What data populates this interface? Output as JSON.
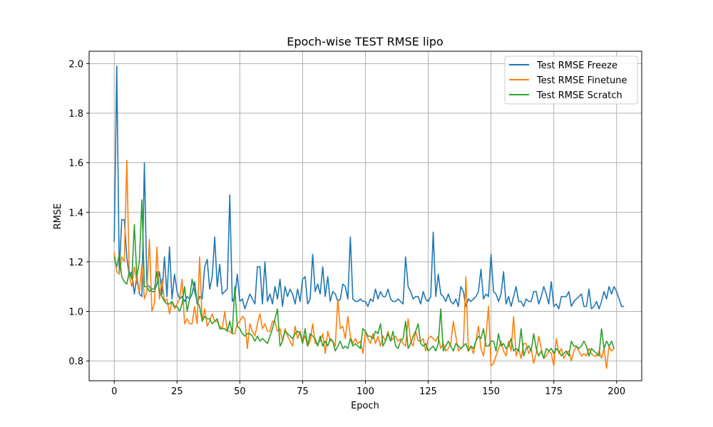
{
  "chart_data": {
    "type": "line",
    "title": "Epoch-wise TEST RMSE lipo",
    "xlabel": "Epoch",
    "ylabel": "RMSE",
    "xlim": [
      -10,
      210
    ],
    "ylim": [
      0.72,
      2.05
    ],
    "xticks": [
      0,
      25,
      50,
      75,
      100,
      125,
      150,
      175,
      200
    ],
    "yticks": [
      0.8,
      1.0,
      1.2,
      1.4,
      1.6,
      1.8,
      2.0
    ],
    "ytick_labels": [
      "0.8",
      "1.0",
      "1.2",
      "1.4",
      "1.6",
      "1.8",
      "2.0"
    ],
    "grid": true,
    "legend_position": "top-right",
    "series": [
      {
        "name": "Test RMSE Freeze",
        "color": "#1f77b4",
        "values": [
          1.28,
          1.99,
          1.16,
          1.37,
          1.37,
          1.22,
          1.14,
          1.16,
          1.07,
          1.14,
          1.07,
          1.06,
          1.6,
          1.11,
          1.1,
          1.08,
          1.08,
          1.11,
          1.16,
          1.07,
          1.22,
          1.06,
          1.26,
          1.05,
          1.15,
          1.08,
          1.05,
          1.06,
          1.04,
          1.06,
          1.05,
          1.07,
          1.12,
          1.03,
          1.06,
          1.05,
          1.18,
          1.21,
          1.09,
          1.14,
          1.3,
          1.1,
          1.19,
          1.07,
          1.08,
          1.09,
          1.47,
          1.04,
          1.06,
          1.15,
          1.04,
          1.05,
          1.01,
          1.04,
          1.07,
          1.05,
          1.03,
          1.18,
          1.18,
          1.03,
          1.2,
          1.04,
          1.07,
          1.03,
          1.1,
          1.05,
          1.13,
          1.02,
          1.1,
          1.06,
          1.09,
          1.07,
          1.03,
          1.09,
          1.04,
          1.13,
          1.14,
          1.03,
          1.05,
          1.23,
          1.08,
          1.11,
          1.07,
          1.18,
          1.06,
          1.14,
          1.04,
          1.08,
          1.07,
          1.04,
          1.05,
          1.11,
          1.1,
          1.05,
          1.3,
          1.05,
          1.04,
          1.04,
          1.05,
          1.04,
          1.04,
          1.02,
          1.05,
          1.04,
          1.09,
          1.05,
          1.08,
          1.06,
          1.06,
          1.09,
          1.05,
          1.04,
          1.04,
          1.05,
          1.04,
          1.03,
          1.22,
          1.1,
          1.08,
          1.05,
          1.06,
          1.06,
          1.03,
          1.08,
          1.05,
          1.04,
          1.06,
          1.32,
          1.06,
          1.15,
          1.07,
          1.06,
          1.04,
          1.07,
          1.04,
          1.03,
          1.05,
          1.02,
          1.1,
          1.08,
          1.02,
          1.05,
          1.04,
          1.05,
          1.06,
          1.08,
          1.17,
          1.05,
          1.07,
          1.06,
          1.23,
          1.08,
          1.07,
          1.04,
          1.07,
          1.16,
          1.03,
          1.06,
          1.02,
          1.06,
          1.1,
          1.04,
          1.04,
          1.02,
          1.05,
          1.04,
          1.04,
          1.08,
          1.08,
          1.03,
          1.06,
          1.1,
          1.07,
          1.03,
          1.12,
          1.02,
          1.03,
          1.01,
          1.06,
          1.06,
          1.06,
          1.08,
          1.02,
          1.04,
          1.05,
          1.06,
          1.07,
          1.02,
          1.02,
          1.09,
          1.01,
          1.02,
          1.04,
          1.01,
          1.04,
          1.08,
          1.05,
          1.1,
          1.07,
          1.1,
          1.08,
          1.05,
          1.02,
          1.02
        ]
      },
      {
        "name": "Test RMSE Finetune",
        "color": "#ff7f0e",
        "values": [
          1.24,
          1.16,
          1.15,
          1.22,
          1.2,
          1.61,
          1.14,
          1.1,
          1.18,
          1.12,
          1.08,
          1.19,
          1.05,
          1.08,
          1.29,
          1.0,
          1.03,
          1.26,
          1.05,
          1.13,
          1.04,
          1.05,
          0.99,
          1.04,
          1.01,
          1.03,
          1.05,
          1.13,
          0.95,
          0.97,
          0.95,
          0.95,
          1.02,
          0.95,
          1.22,
          0.96,
          1.01,
          0.94,
          0.96,
          0.99,
          0.96,
          0.96,
          0.94,
          0.93,
          1.0,
          0.92,
          0.92,
          0.91,
          0.91,
          0.95,
          0.96,
          0.98,
          0.97,
          0.85,
          0.95,
          0.92,
          0.9,
          0.95,
          0.99,
          0.93,
          0.95,
          0.92,
          0.92,
          0.96,
          0.96,
          0.92,
          0.93,
          0.88,
          0.93,
          0.9,
          0.88,
          0.86,
          0.94,
          0.89,
          0.92,
          0.88,
          0.9,
          0.86,
          0.88,
          0.95,
          0.87,
          0.87,
          0.88,
          0.91,
          0.83,
          0.92,
          0.88,
          0.88,
          0.86,
          1.05,
          0.93,
          0.94,
          0.89,
          0.98,
          0.9,
          0.87,
          0.89,
          0.87,
          0.88,
          0.83,
          0.92,
          0.89,
          0.87,
          0.91,
          0.87,
          0.9,
          0.86,
          0.9,
          0.88,
          0.92,
          0.88,
          0.89,
          0.9,
          0.88,
          0.89,
          0.87,
          0.86,
          0.97,
          0.88,
          0.86,
          0.92,
          0.88,
          0.88,
          0.89,
          0.84,
          0.89,
          0.9,
          0.89,
          0.88,
          0.9,
          0.85,
          0.87,
          0.84,
          0.85,
          0.87,
          0.96,
          0.9,
          0.84,
          0.85,
          0.86,
          1.14,
          0.84,
          0.86,
          0.83,
          0.88,
          0.94,
          0.85,
          0.82,
          0.9,
          1.02,
          0.78,
          0.79,
          0.82,
          0.85,
          0.88,
          0.84,
          0.82,
          0.88,
          0.84,
          0.98,
          0.82,
          0.85,
          0.81,
          0.87,
          0.87,
          0.83,
          0.85,
          0.79,
          0.83,
          0.9,
          0.85,
          0.81,
          0.82,
          0.84,
          0.83,
          0.78,
          0.89,
          0.83,
          0.85,
          0.81,
          0.83,
          0.84,
          0.8,
          0.84,
          0.86,
          0.84,
          0.82,
          0.83,
          0.82,
          0.85,
          0.83,
          0.82,
          0.82,
          0.84,
          0.81,
          0.85,
          0.77,
          0.86,
          0.84,
          0.85
        ]
      },
      {
        "name": "Test RMSE Scratch",
        "color": "#2ca02c",
        "values": [
          1.22,
          1.18,
          1.23,
          1.14,
          1.12,
          1.11,
          1.16,
          1.13,
          1.35,
          1.14,
          1.2,
          1.45,
          1.1,
          1.1,
          1.08,
          1.09,
          1.09,
          1.16,
          1.08,
          1.06,
          1.04,
          1.03,
          1.03,
          1.04,
          1.02,
          1.02,
          1.0,
          1.03,
          1.1,
          1.0,
          1.05,
          1.13,
          1.08,
          1.04,
          1.02,
          0.96,
          0.98,
          0.97,
          0.97,
          0.95,
          0.96,
          0.97,
          0.93,
          0.93,
          0.93,
          0.92,
          0.96,
          0.91,
          1.1,
          0.94,
          0.93,
          0.91,
          0.9,
          0.91,
          0.91,
          0.9,
          0.88,
          0.9,
          0.88,
          0.89,
          0.88,
          0.87,
          0.9,
          0.93,
          0.97,
          1.01,
          0.86,
          0.88,
          0.92,
          0.91,
          0.9,
          0.89,
          0.91,
          0.92,
          0.91,
          0.87,
          0.93,
          0.86,
          0.91,
          0.9,
          0.89,
          0.86,
          0.9,
          0.86,
          0.88,
          0.86,
          0.89,
          0.88,
          0.84,
          0.86,
          0.88,
          0.85,
          0.86,
          0.85,
          0.89,
          0.86,
          0.87,
          0.86,
          0.85,
          0.93,
          0.92,
          0.9,
          0.9,
          0.89,
          0.92,
          0.91,
          0.95,
          0.86,
          0.88,
          0.91,
          0.88,
          0.92,
          0.86,
          0.85,
          0.88,
          0.89,
          0.96,
          0.85,
          0.87,
          0.9,
          0.92,
          0.95,
          0.87,
          0.86,
          0.87,
          0.84,
          0.85,
          0.86,
          0.84,
          0.87,
          1.01,
          0.84,
          0.86,
          0.88,
          0.86,
          0.84,
          0.87,
          0.86,
          0.85,
          0.86,
          0.87,
          0.84,
          0.86,
          0.85,
          0.88,
          0.9,
          0.89,
          0.93,
          0.86,
          0.86,
          0.88,
          0.88,
          0.84,
          0.91,
          0.86,
          0.87,
          0.85,
          0.86,
          0.89,
          0.84,
          0.85,
          0.84,
          0.93,
          0.82,
          0.85,
          0.86,
          0.84,
          0.91,
          0.85,
          0.82,
          0.84,
          0.81,
          0.85,
          0.84,
          0.85,
          0.83,
          0.85,
          0.84,
          0.82,
          0.83,
          0.84,
          0.82,
          0.88,
          0.86,
          0.86,
          0.85,
          0.86,
          0.88,
          0.86,
          0.82,
          0.85,
          0.84,
          0.83,
          0.82,
          0.93,
          0.85,
          0.88,
          0.86,
          0.88,
          0.85
        ]
      }
    ]
  }
}
